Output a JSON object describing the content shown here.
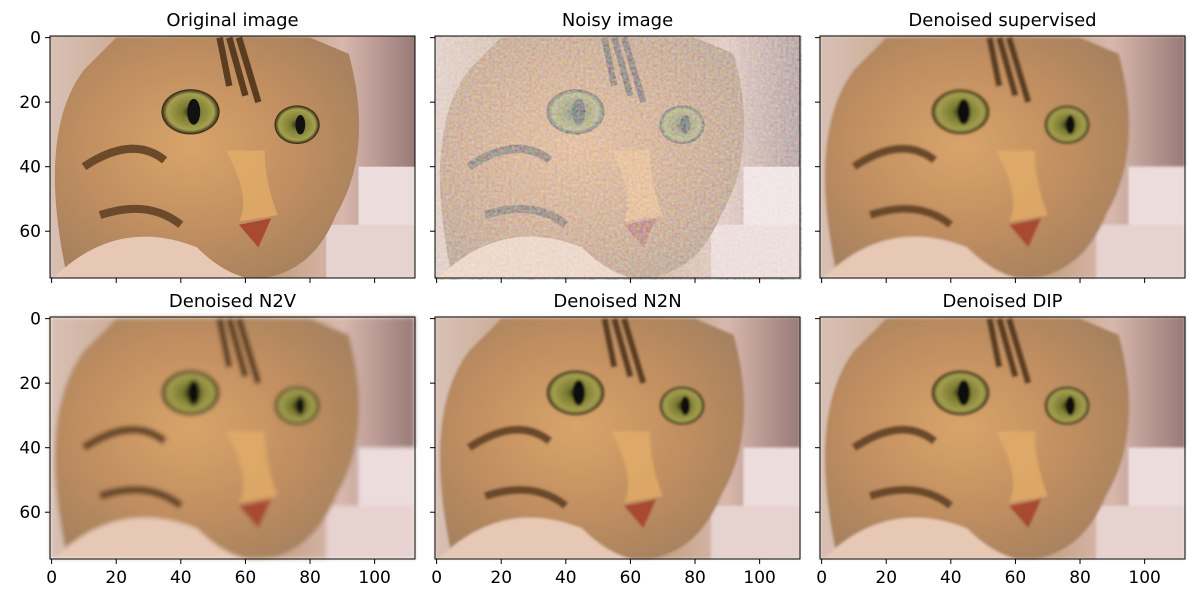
{
  "figure": {
    "panels": [
      {
        "title": "Original image"
      },
      {
        "title": "Noisy image"
      },
      {
        "title": "Denoised supervised"
      },
      {
        "title": "Denoised N2V"
      },
      {
        "title": "Denoised N2N"
      },
      {
        "title": "Denoised DIP"
      }
    ],
    "xlim": [
      -0.5,
      112.5
    ],
    "ylim": [
      74.5,
      -0.5
    ],
    "xticks": [
      0,
      20,
      40,
      60,
      80,
      100
    ],
    "yticks": [
      0,
      20,
      40,
      60
    ]
  }
}
